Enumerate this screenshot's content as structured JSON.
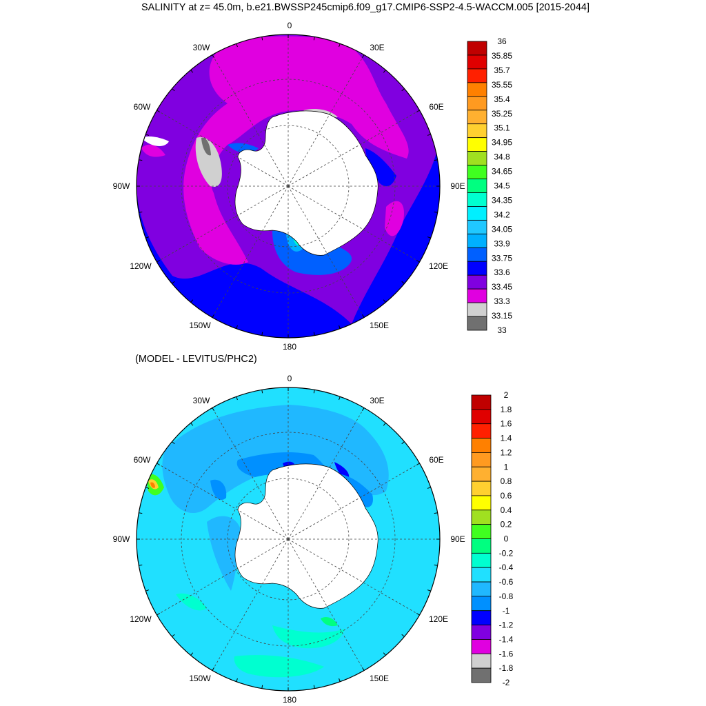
{
  "title": "SALINITY at z=  45.0m, b.e21.BWSSP245cmip6.f09_g17.CMIP6-SSP2-4.5-WACCM.005 [2015-2044]",
  "subtitle": "(MODEL - LEVITUS/PHC2)",
  "lon_labels": [
    "0",
    "30E",
    "60E",
    "90E",
    "120E",
    "150E",
    "180",
    "150W",
    "120W",
    "90W",
    "60W",
    "30W"
  ],
  "panels": [
    {
      "name": "salinity",
      "levels": [
        "36",
        "35.85",
        "35.7",
        "35.55",
        "35.4",
        "35.25",
        "35.1",
        "34.95",
        "34.8",
        "34.65",
        "34.5",
        "34.35",
        "34.2",
        "34.05",
        "33.9",
        "33.75",
        "33.6",
        "33.45",
        "33.3",
        "33.15",
        "33"
      ],
      "colors": [
        "#c00000",
        "#e00000",
        "#ff2000",
        "#ff8000",
        "#ff9a20",
        "#ffb030",
        "#ffd030",
        "#ffff00",
        "#a0e020",
        "#40ff20",
        "#00ff80",
        "#00ffd0",
        "#00f0ff",
        "#20c8ff",
        "#00b0ff",
        "#0060ff",
        "#0000ff",
        "#8000e0",
        "#e000e0",
        "#d0d0d0",
        "#707070"
      ]
    },
    {
      "name": "difference",
      "levels": [
        "2",
        "1.8",
        "1.6",
        "1.4",
        "1.2",
        "1",
        "0.8",
        "0.6",
        "0.4",
        "0.2",
        "0",
        "-0.2",
        "-0.4",
        "-0.6",
        "-0.8",
        "-1",
        "-1.2",
        "-1.4",
        "-1.6",
        "-1.8",
        "-2"
      ],
      "colors": [
        "#c00000",
        "#e00000",
        "#ff2000",
        "#ff8000",
        "#ff9a20",
        "#ffb030",
        "#ffd030",
        "#ffff00",
        "#a0e020",
        "#40ff20",
        "#00ff80",
        "#00ffd0",
        "#20e0ff",
        "#20b8ff",
        "#0090ff",
        "#0000ff",
        "#8000e0",
        "#e000e0",
        "#d0d0d0",
        "#707070"
      ]
    }
  ]
}
